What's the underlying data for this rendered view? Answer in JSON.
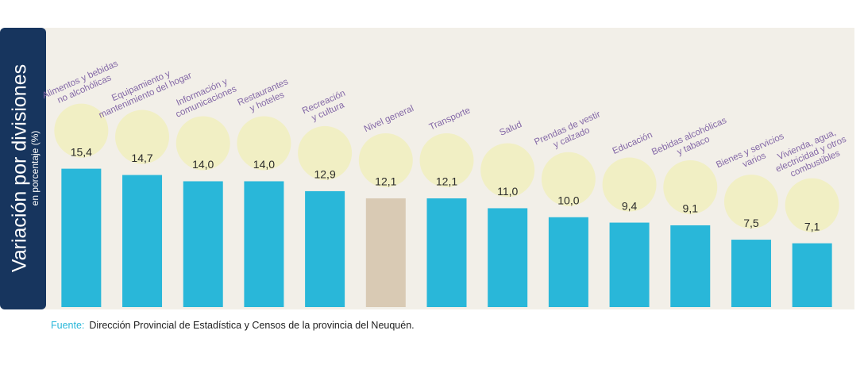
{
  "chart_data": {
    "type": "bar",
    "title": "Variación por divisiones",
    "subtitle": "en porcentaje (%)",
    "categories": [
      "Alimentos y bebidas\nno alcohólicas",
      "Equipamiento y\nmantenimiento del hogar",
      "Información y\ncomunicaciones",
      "Restaurantes\ny hoteles",
      "Recreación\ny cultura",
      "Nivel general",
      "Transporte",
      "Salud",
      "Prendas de vestir\ny calzado",
      "Educación",
      "Bebidas alcohólicas\ny tabaco",
      "Bienes y servicios\nvarios",
      "Vivienda, agua,\nelectricidad y otros\ncombustibles"
    ],
    "values": [
      15.4,
      14.7,
      14.0,
      14.0,
      12.9,
      12.1,
      12.1,
      11.0,
      10.0,
      9.4,
      9.1,
      7.5,
      7.1
    ],
    "value_labels": [
      "15,4",
      "14,7",
      "14,0",
      "14,0",
      "12,9",
      "12,1",
      "12,1",
      "11,0",
      "10,0",
      "9,4",
      "9,1",
      "7,5",
      "7,1"
    ],
    "colors": [
      "#29b7d9",
      "#29b7d9",
      "#29b7d9",
      "#29b7d9",
      "#29b7d9",
      "#d9cab4",
      "#29b7d9",
      "#29b7d9",
      "#29b7d9",
      "#29b7d9",
      "#29b7d9",
      "#29b7d9",
      "#29b7d9"
    ],
    "ylim": [
      0,
      34
    ],
    "source_label": "Fuente:",
    "source": "Dirección Provincial de Estadística y Censos de la provincia del Neuquén."
  }
}
